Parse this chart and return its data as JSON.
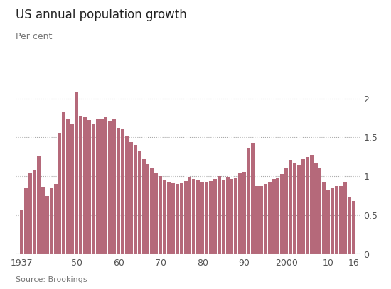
{
  "title": "US annual population growth",
  "subtitle": "Per cent",
  "source": "Source: Brookings",
  "bar_color": "#b5697a",
  "background_color": "#ffffff",
  "ylim": [
    0,
    2.15
  ],
  "yticks": [
    0,
    0.5,
    1.0,
    1.5,
    2.0
  ],
  "years": [
    1937,
    1938,
    1939,
    1940,
    1941,
    1942,
    1943,
    1944,
    1945,
    1946,
    1947,
    1948,
    1949,
    1950,
    1951,
    1952,
    1953,
    1954,
    1955,
    1956,
    1957,
    1958,
    1959,
    1960,
    1961,
    1962,
    1963,
    1964,
    1965,
    1966,
    1967,
    1968,
    1969,
    1970,
    1971,
    1972,
    1973,
    1974,
    1975,
    1976,
    1977,
    1978,
    1979,
    1980,
    1981,
    1982,
    1983,
    1984,
    1985,
    1986,
    1987,
    1988,
    1989,
    1990,
    1991,
    1992,
    1993,
    1994,
    1995,
    1996,
    1997,
    1998,
    1999,
    2000,
    2001,
    2002,
    2003,
    2004,
    2005,
    2006,
    2007,
    2008,
    2009,
    2010,
    2011,
    2012,
    2013,
    2014,
    2015,
    2016
  ],
  "values": [
    0.57,
    0.85,
    1.05,
    1.08,
    1.27,
    0.87,
    0.75,
    0.85,
    0.9,
    1.55,
    1.82,
    1.73,
    1.68,
    2.08,
    1.78,
    1.76,
    1.72,
    1.68,
    1.74,
    1.73,
    1.76,
    1.71,
    1.73,
    1.62,
    1.6,
    1.52,
    1.44,
    1.4,
    1.32,
    1.22,
    1.16,
    1.1,
    1.04,
    1.0,
    0.96,
    0.93,
    0.91,
    0.9,
    0.91,
    0.94,
    0.99,
    0.97,
    0.96,
    0.92,
    0.92,
    0.94,
    0.97,
    1.0,
    0.95,
    0.99,
    0.97,
    0.98,
    1.04,
    1.06,
    1.36,
    1.42,
    0.88,
    0.88,
    0.9,
    0.93,
    0.97,
    0.98,
    1.03,
    1.1,
    1.21,
    1.18,
    1.14,
    1.22,
    1.25,
    1.28,
    1.18,
    1.1,
    0.93,
    0.82,
    0.85,
    0.88,
    0.88,
    0.93,
    0.73,
    0.68
  ],
  "xtick_positions": [
    1937,
    1950,
    1960,
    1970,
    1980,
    1990,
    2000,
    2010,
    2016
  ],
  "xtick_labels": [
    "1937",
    "50",
    "60",
    "70",
    "80",
    "90",
    "2000",
    "10",
    "16"
  ],
  "title_fontsize": 12,
  "subtitle_fontsize": 9,
  "source_fontsize": 8,
  "tick_fontsize": 9
}
